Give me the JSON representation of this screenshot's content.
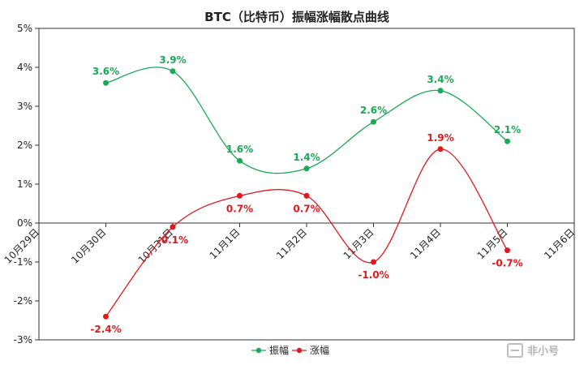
{
  "chart_data": {
    "type": "line",
    "title": "BTC（比特币）振幅涨幅散点曲线",
    "xlabel": "",
    "ylabel": "",
    "x_ticks": [
      "10月29日",
      "10月30日",
      "10月31日",
      "11月1日",
      "11月2日",
      "11月3日",
      "11月4日",
      "11月5日",
      "11月6日"
    ],
    "y_ticks": [
      "-3%",
      "-2%",
      "-1%",
      "0%",
      "1%",
      "2%",
      "3%",
      "4%",
      "5%"
    ],
    "ylim": [
      -3,
      5
    ],
    "grid": false,
    "legend_position": "bottom",
    "series": [
      {
        "name": "振幅",
        "color": "#1aaa55",
        "x": [
          "10月30日",
          "10月31日",
          "11月1日",
          "11月2日",
          "11月3日",
          "11月4日",
          "11月5日"
        ],
        "values": [
          3.6,
          3.9,
          1.6,
          1.4,
          2.6,
          3.4,
          2.1
        ],
        "labels": [
          "3.6%",
          "3.9%",
          "1.6%",
          "1.4%",
          "2.6%",
          "3.4%",
          "2.1%"
        ]
      },
      {
        "name": "涨幅",
        "color": "#e0191d",
        "x": [
          "10月30日",
          "10月31日",
          "11月1日",
          "11月2日",
          "11月3日",
          "11月4日",
          "11月5日"
        ],
        "values": [
          -2.4,
          -0.1,
          0.7,
          0.7,
          -1.0,
          1.9,
          -0.7
        ],
        "labels": [
          "-2.4%",
          "-0.1%",
          "0.7%",
          "0.7%",
          "-1.0%",
          "1.9%",
          "-0.7%"
        ]
      }
    ]
  },
  "watermark": "非小号"
}
